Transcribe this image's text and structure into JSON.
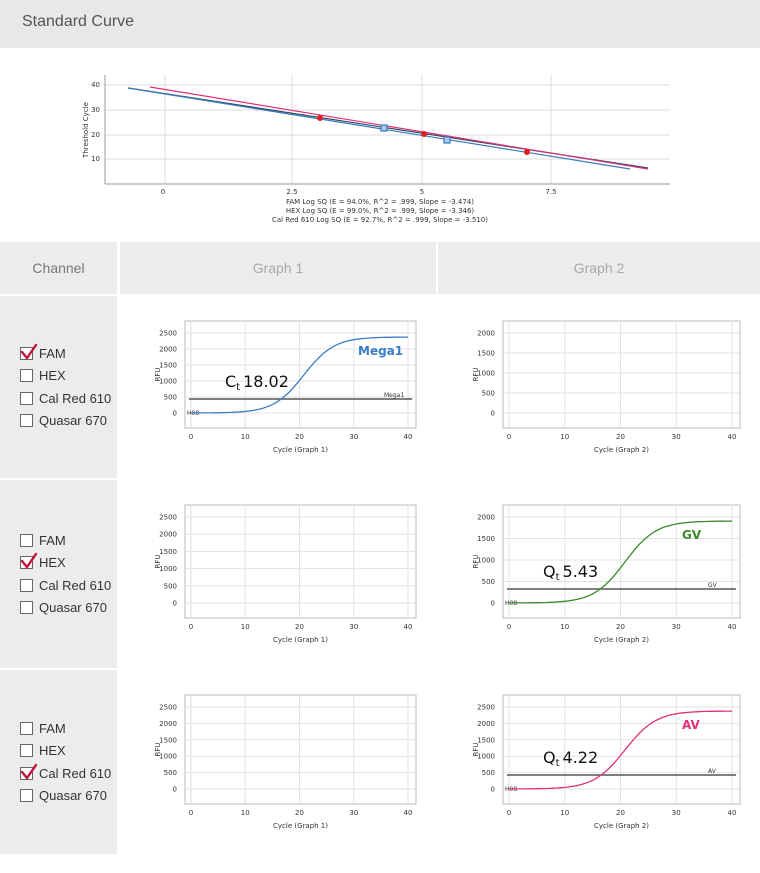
{
  "header": {
    "title": "Standard Curve"
  },
  "standard_curve": {
    "ylabel": "Threshold Cycle",
    "y_ticks": [
      "40",
      "30",
      "20",
      "10"
    ],
    "x_ticks": [
      "0",
      "2.5",
      "5",
      "7.5"
    ],
    "legend": [
      "FAM Log SQ (E = 94.0%, R^2 = .999, Slope = -3.474)",
      "HEX Log SQ (E = 99.0%, R^2 = .999, Slope = -3.346)",
      "Cal Red 610 Log SQ (E = 92.7%, R^2 = .999, Slope = -3.510)"
    ],
    "colors": {
      "fam": "#2a4a5a",
      "hex": "#3a78c0",
      "calred": "#e0307a"
    }
  },
  "table": {
    "headers": {
      "channel": "Channel",
      "graph1": "Graph 1",
      "graph2": "Graph 2"
    }
  },
  "channels": {
    "fam": "FAM",
    "hex": "HEX",
    "calred": "Cal Red 610",
    "quasar": "Quasar 670"
  },
  "rows": [
    {
      "checked": "fam",
      "graph1": {
        "xlabel": "Cycle (Graph 1)",
        "ylabel": "RFU",
        "y_ticks": [
          "2500",
          "2000",
          "1500",
          "1000",
          "500",
          "0"
        ],
        "x_ticks": [
          "0",
          "10",
          "20",
          "30",
          "40"
        ],
        "curve_label": "Mega1",
        "threshold_label": "Mega1",
        "baseline_label": "H08",
        "annotation_main": "C",
        "annotation_sub": "t",
        "annotation_value": "18.02",
        "curve_color": "#3a7bc8"
      },
      "graph2": {
        "xlabel": "Cycle (Graph 2)",
        "ylabel": "RFU",
        "y_ticks": [
          "2000",
          "1500",
          "1000",
          "500",
          "0"
        ],
        "x_ticks": [
          "0",
          "10",
          "20",
          "30",
          "40"
        ]
      }
    },
    {
      "checked": "hex",
      "graph1": {
        "xlabel": "Cycle (Graph 1)",
        "ylabel": "RFU",
        "y_ticks": [
          "2500",
          "2000",
          "1500",
          "1000",
          "500",
          "0"
        ],
        "x_ticks": [
          "0",
          "10",
          "20",
          "30",
          "40"
        ]
      },
      "graph2": {
        "xlabel": "Cycle (Graph 2)",
        "ylabel": "RFU",
        "y_ticks": [
          "2000",
          "1500",
          "1000",
          "500",
          "0"
        ],
        "x_ticks": [
          "0",
          "10",
          "20",
          "30",
          "40"
        ],
        "curve_label": "GV",
        "threshold_label": "GV",
        "baseline_label": "H08",
        "annotation_main": "Q",
        "annotation_sub": "t",
        "annotation_value": "5.43",
        "curve_color": "#3a8a2a"
      }
    },
    {
      "checked": "calred",
      "graph1": {
        "xlabel": "Cycle (Graph 1)",
        "ylabel": "RFU",
        "y_ticks": [
          "2500",
          "2000",
          "1500",
          "1000",
          "500",
          "0"
        ],
        "x_ticks": [
          "0",
          "10",
          "20",
          "30",
          "40"
        ]
      },
      "graph2": {
        "xlabel": "Cycle (Graph 2)",
        "ylabel": "RFU",
        "y_ticks": [
          "2500",
          "2000",
          "1500",
          "1000",
          "500",
          "0"
        ],
        "x_ticks": [
          "0",
          "10",
          "20",
          "30",
          "40"
        ],
        "curve_label": "AV",
        "threshold_label": "AV",
        "baseline_label": "H08",
        "annotation_main": "Q",
        "annotation_sub": "t",
        "annotation_value": "4.22",
        "curve_color": "#e0307a"
      }
    }
  ]
}
